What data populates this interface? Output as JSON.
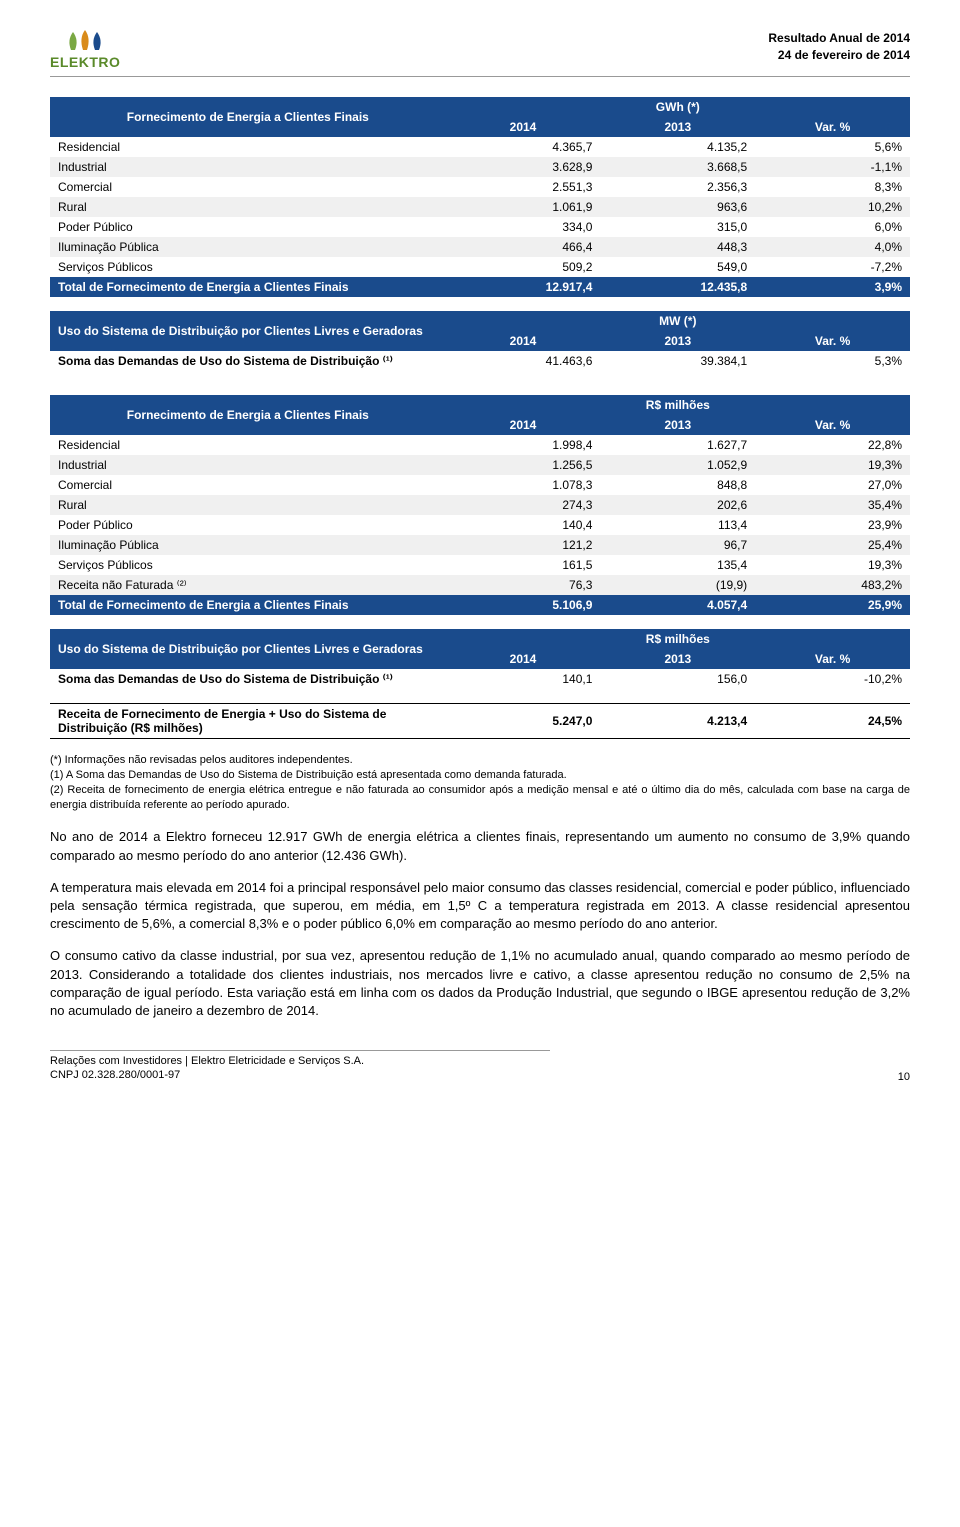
{
  "header": {
    "logo_text": "ELEKTRO",
    "line1": "Resultado Anual de 2014",
    "line2": "24 de fevereiro de 2014"
  },
  "colors": {
    "header_blue": "#1a4b8c",
    "logo_green": "#5a8a2a",
    "stripe": "#f0f0f0"
  },
  "table1": {
    "title": "Fornecimento de Energia a Clientes Finais",
    "unit": "GWh (*)",
    "cols": [
      "2014",
      "2013",
      "Var. %"
    ],
    "rows": [
      {
        "label": "Residencial",
        "v1": "4.365,7",
        "v2": "4.135,2",
        "v3": "5,6%"
      },
      {
        "label": "Industrial",
        "v1": "3.628,9",
        "v2": "3.668,5",
        "v3": "-1,1%"
      },
      {
        "label": "Comercial",
        "v1": "2.551,3",
        "v2": "2.356,3",
        "v3": "8,3%"
      },
      {
        "label": "Rural",
        "v1": "1.061,9",
        "v2": "963,6",
        "v3": "10,2%"
      },
      {
        "label": "Poder Público",
        "v1": "334,0",
        "v2": "315,0",
        "v3": "6,0%"
      },
      {
        "label": "Iluminação Pública",
        "v1": "466,4",
        "v2": "448,3",
        "v3": "4,0%"
      },
      {
        "label": "Serviços Públicos",
        "v1": "509,2",
        "v2": "549,0",
        "v3": "-7,2%"
      }
    ],
    "total": {
      "label": "Total de Fornecimento de Energia a Clientes Finais",
      "v1": "12.917,4",
      "v2": "12.435,8",
      "v3": "3,9%"
    }
  },
  "table2": {
    "title": "Uso do Sistema de Distribuição por Clientes Livres e Geradoras",
    "unit": "MW (*)",
    "cols": [
      "2014",
      "2013",
      "Var. %"
    ],
    "row": {
      "label": "Soma das Demandas de Uso do Sistema de Distribuição ⁽¹⁾",
      "v1": "41.463,6",
      "v2": "39.384,1",
      "v3": "5,3%"
    }
  },
  "table3": {
    "title": "Fornecimento de Energia a Clientes Finais",
    "unit": "R$ milhões",
    "cols": [
      "2014",
      "2013",
      "Var. %"
    ],
    "rows": [
      {
        "label": "Residencial",
        "v1": "1.998,4",
        "v2": "1.627,7",
        "v3": "22,8%"
      },
      {
        "label": "Industrial",
        "v1": "1.256,5",
        "v2": "1.052,9",
        "v3": "19,3%"
      },
      {
        "label": "Comercial",
        "v1": "1.078,3",
        "v2": "848,8",
        "v3": "27,0%"
      },
      {
        "label": "Rural",
        "v1": "274,3",
        "v2": "202,6",
        "v3": "35,4%"
      },
      {
        "label": "Poder Público",
        "v1": "140,4",
        "v2": "113,4",
        "v3": "23,9%"
      },
      {
        "label": "Iluminação Pública",
        "v1": "121,2",
        "v2": "96,7",
        "v3": "25,4%"
      },
      {
        "label": "Serviços Públicos",
        "v1": "161,5",
        "v2": "135,4",
        "v3": "19,3%"
      },
      {
        "label": "Receita não Faturada ⁽²⁾",
        "v1": "76,3",
        "v2": "(19,9)",
        "v3": "483,2%"
      }
    ],
    "total": {
      "label": "Total de Fornecimento de Energia a Clientes Finais",
      "v1": "5.106,9",
      "v2": "4.057,4",
      "v3": "25,9%"
    }
  },
  "table4": {
    "title": "Uso do Sistema de Distribuição por Clientes Livres e Geradoras",
    "unit": "R$ milhões",
    "cols": [
      "2014",
      "2013",
      "Var. %"
    ],
    "row": {
      "label": "Soma das Demandas de Uso do Sistema de Distribuição ⁽¹⁾",
      "v1": "140,1",
      "v2": "156,0",
      "v3": "-10,2%"
    }
  },
  "receita": {
    "label": "Receita de Fornecimento de Energia + Uso do Sistema de Distribuição (R$ milhões)",
    "v1": "5.247,0",
    "v2": "4.213,4",
    "v3": "24,5%"
  },
  "footnotes": {
    "f1": "(*) Informações não revisadas pelos auditores independentes.",
    "f2": "(1) A Soma das Demandas de Uso do Sistema de Distribuição está apresentada como demanda faturada.",
    "f3": "(2) Receita de fornecimento de energia elétrica entregue e não faturada ao consumidor após a medição mensal e até o último dia do mês, calculada com base na carga de energia distribuída referente ao período apurado."
  },
  "body": {
    "p1": "No ano de 2014 a Elektro forneceu 12.917 GWh de energia elétrica a clientes finais, representando um aumento no consumo de 3,9% quando comparado ao mesmo período do ano anterior (12.436 GWh).",
    "p2": "A temperatura mais elevada em 2014 foi a principal responsável pelo maior consumo das classes residencial, comercial e poder público, influenciado pela sensação térmica registrada, que superou, em média, em 1,5º C a temperatura registrada em 2013. A classe residencial apresentou crescimento de 5,6%, a comercial 8,3% e o poder público 6,0% em comparação ao mesmo período do ano anterior.",
    "p3": "O consumo cativo da classe industrial, por sua vez, apresentou redução de 1,1% no acumulado anual, quando comparado ao mesmo período de 2013. Considerando a totalidade dos clientes industriais, nos mercados livre e cativo, a classe apresentou redução no consumo de 2,5% na comparação de igual período. Esta variação está em linha com os dados da Produção Industrial, que segundo o IBGE apresentou redução de 3,2% no acumulado de janeiro a dezembro de 2014."
  },
  "footer": {
    "line1": "Relações com Investidores | Elektro Eletricidade e Serviços S.A.",
    "line2": "CNPJ 02.328.280/0001-97",
    "page": "10"
  }
}
